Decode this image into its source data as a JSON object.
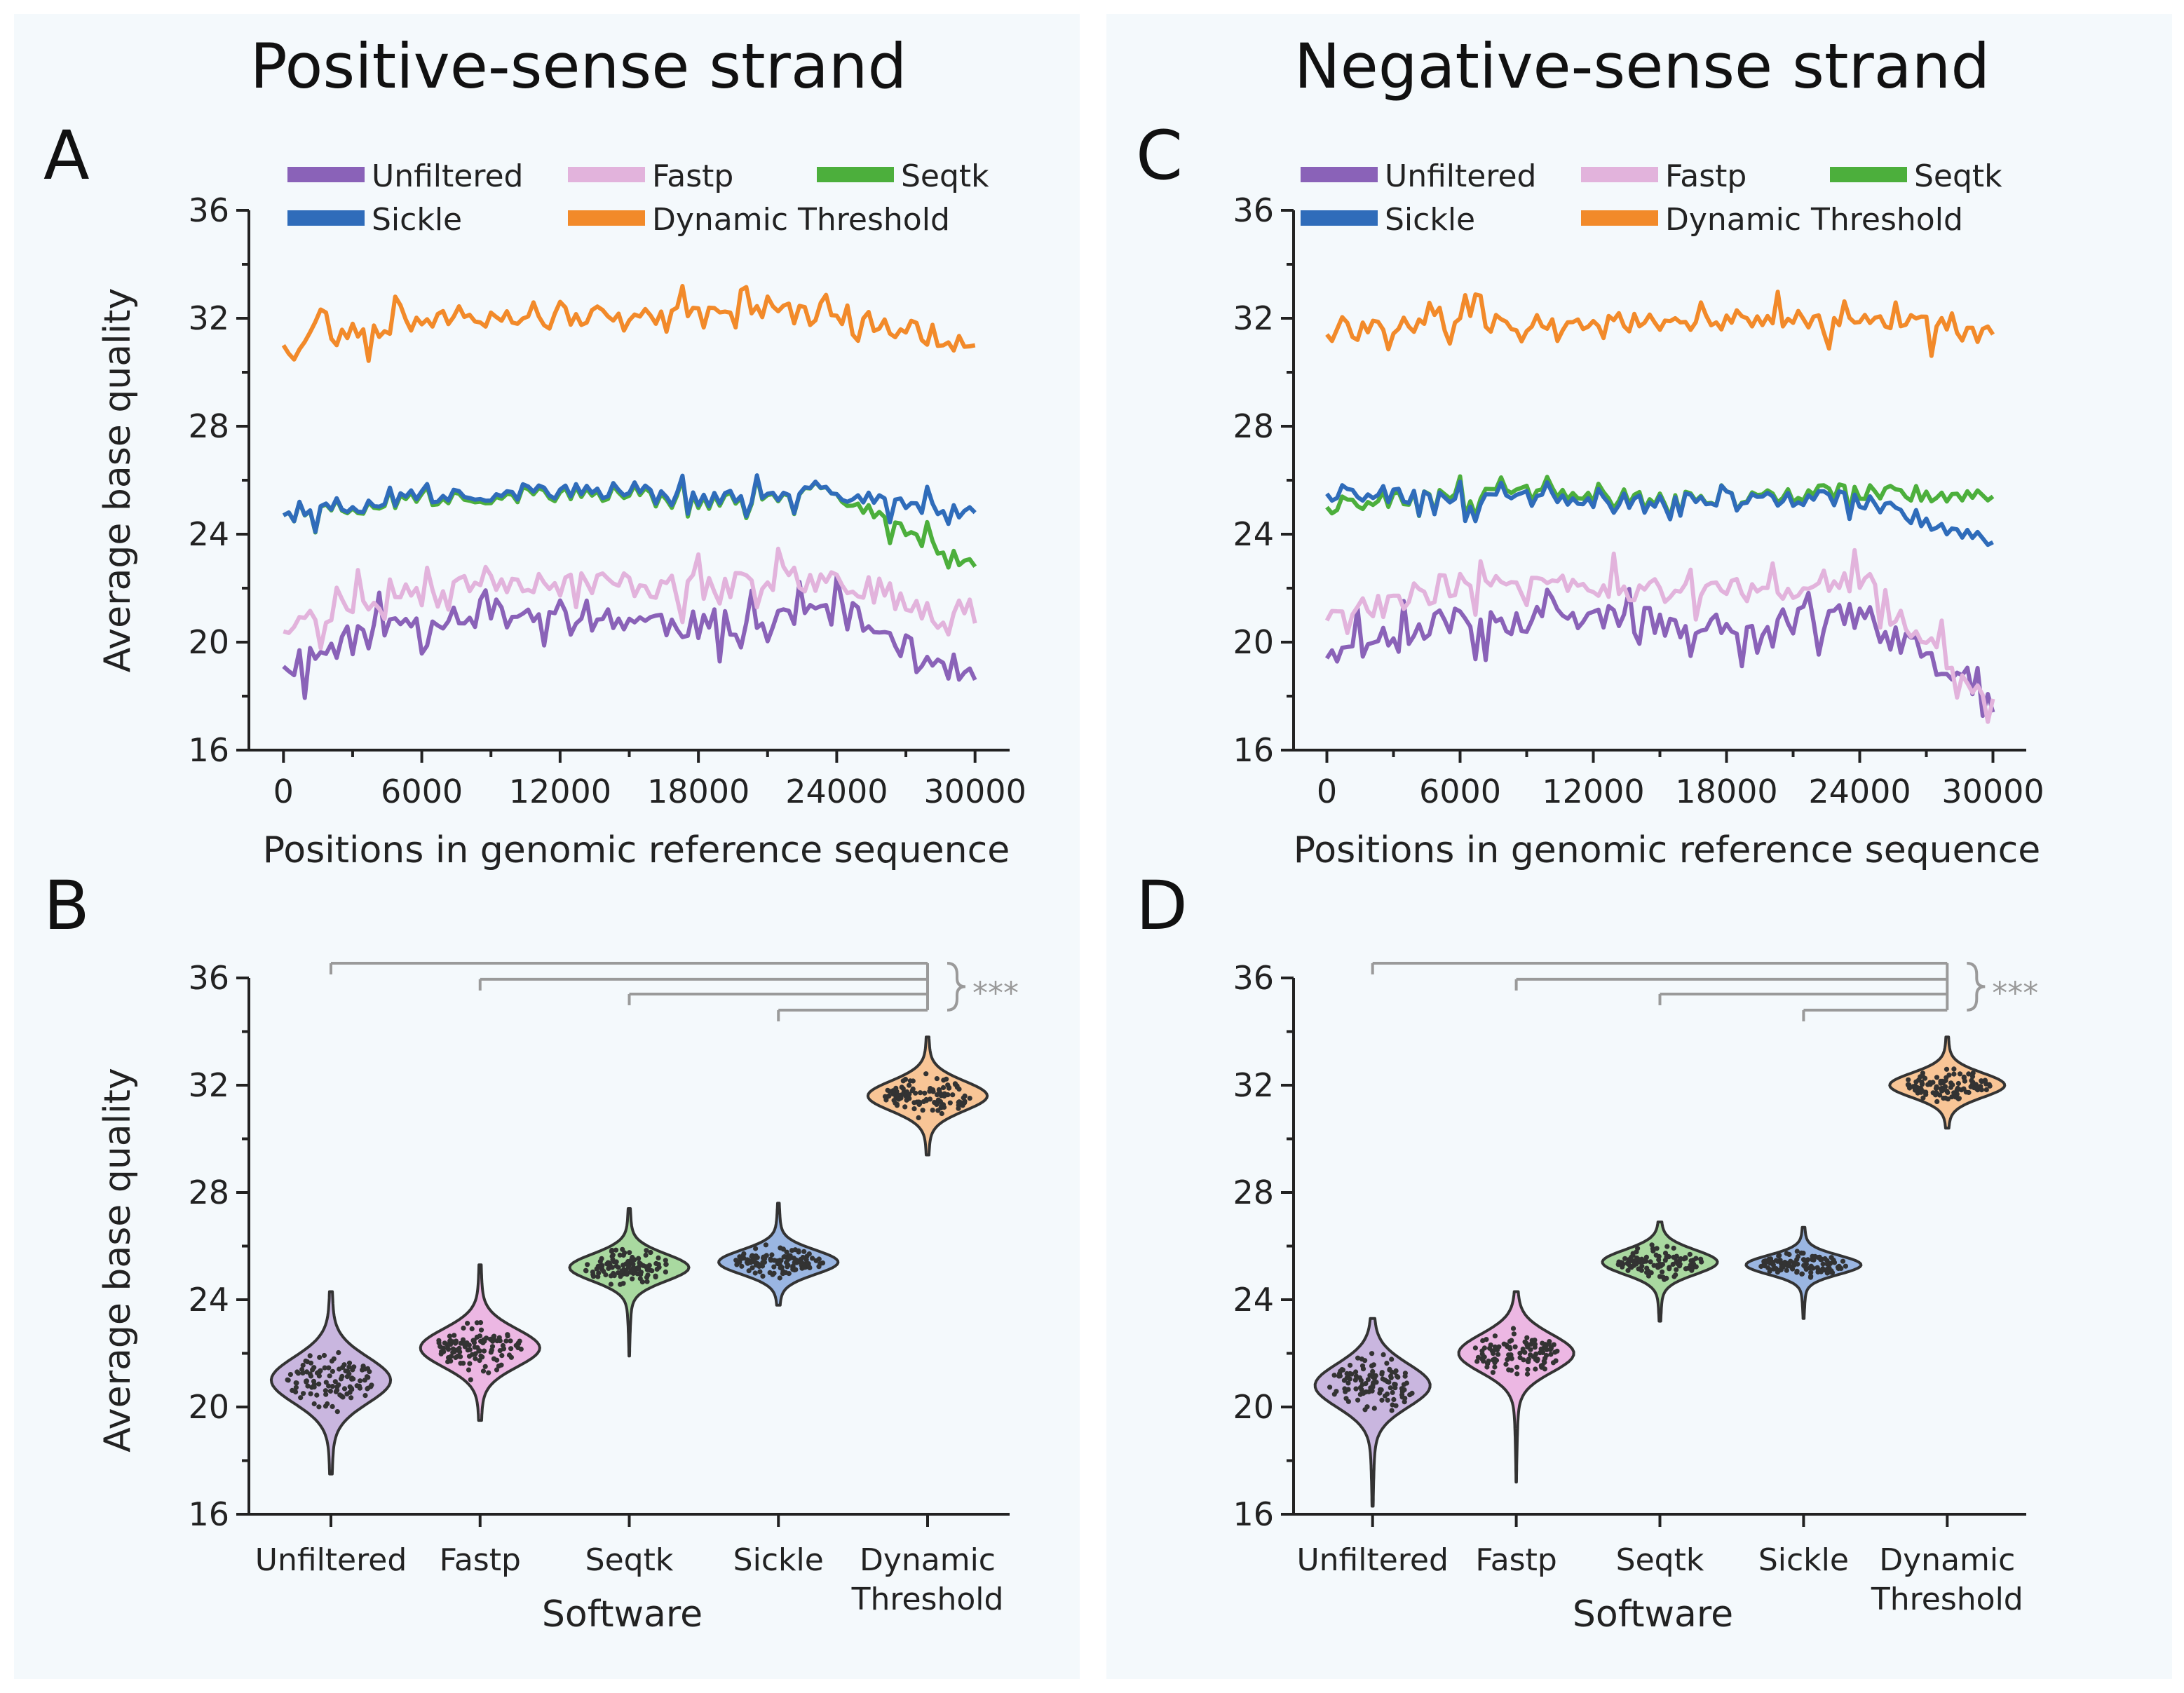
{
  "colors": {
    "Unfiltered": "#8a62b8",
    "Fastp": "#e2b3dc",
    "Seqtk": "#4caf3c",
    "Sickle": "#2f6cba",
    "Dynamic Threshold": "#f28a2a",
    "background": "#f4f9fc",
    "bracket": "#9a9a9a"
  },
  "violin_fill": {
    "Unfiltered": "#c9b6df",
    "Fastp": "#ecb7e3",
    "Seqtk": "#a9d9a0",
    "Sickle": "#9ab6e2",
    "Dynamic Threshold": "#f8c596"
  },
  "panels": {
    "positive_title": "Positive-sense strand",
    "negative_title": "Negative-sense strand"
  },
  "legend": [
    "Unfiltered",
    "Fastp",
    "Seqtk",
    "Sickle",
    "Dynamic Threshold"
  ],
  "significance": "***",
  "chart_data": [
    {
      "panel": "A",
      "type": "line",
      "strand": "Positive-sense strand",
      "xlabel": "Positions in genomic reference sequence",
      "ylabel": "Average base quality",
      "xlim": [
        -1500,
        31500
      ],
      "ylim": [
        16,
        36
      ],
      "xticks": [
        0,
        6000,
        12000,
        18000,
        24000,
        30000
      ],
      "yticks": [
        16,
        20,
        24,
        28,
        32,
        36
      ],
      "x": [
        0,
        6000,
        12000,
        18000,
        24000,
        30000
      ],
      "series": [
        {
          "name": "Unfiltered",
          "values": [
            19.1,
            21.0,
            21.1,
            20.6,
            21.2,
            18.6
          ],
          "seed": 11,
          "amp": 0.85
        },
        {
          "name": "Fastp",
          "values": [
            20.4,
            22.3,
            22.3,
            22.0,
            22.4,
            20.7
          ],
          "seed": 23,
          "amp": 0.75
        },
        {
          "name": "Seqtk",
          "values": [
            24.7,
            25.3,
            25.5,
            25.2,
            25.5,
            22.8
          ],
          "seed": 37,
          "amp": 0.45
        },
        {
          "name": "Sickle",
          "values": [
            24.7,
            25.4,
            25.6,
            25.3,
            25.5,
            24.8
          ],
          "seed": 37,
          "amp": 0.45
        },
        {
          "name": "Dynamic Threshold",
          "values": [
            31.0,
            32.0,
            32.1,
            32.0,
            32.2,
            31.0
          ],
          "seed": 53,
          "amp": 0.65
        }
      ]
    },
    {
      "panel": "C",
      "type": "line",
      "strand": "Negative-sense strand",
      "xlabel": "Positions in genomic reference sequence",
      "ylabel": "",
      "xlim": [
        -1500,
        31500
      ],
      "ylim": [
        16,
        36
      ],
      "xticks": [
        0,
        6000,
        12000,
        18000,
        24000,
        30000
      ],
      "yticks": [
        16,
        20,
        24,
        28,
        32,
        36
      ],
      "x": [
        0,
        6000,
        12000,
        18000,
        24000,
        30000
      ],
      "series": [
        {
          "name": "Unfiltered",
          "values": [
            19.4,
            20.8,
            20.9,
            20.5,
            21.1,
            17.4
          ],
          "seed": 71,
          "amp": 0.85
        },
        {
          "name": "Fastp",
          "values": [
            20.8,
            22.2,
            22.1,
            21.8,
            22.3,
            17.9
          ],
          "seed": 83,
          "amp": 0.75
        },
        {
          "name": "Seqtk",
          "values": [
            25.0,
            25.5,
            25.4,
            25.3,
            25.6,
            25.4
          ],
          "seed": 97,
          "amp": 0.45
        },
        {
          "name": "Sickle",
          "values": [
            25.5,
            25.3,
            25.2,
            25.3,
            25.3,
            23.7
          ],
          "seed": 97,
          "amp": 0.45
        },
        {
          "name": "Dynamic Threshold",
          "values": [
            31.4,
            31.9,
            31.8,
            31.9,
            32.0,
            31.4
          ],
          "seed": 109,
          "amp": 0.6
        }
      ]
    },
    {
      "panel": "B",
      "type": "violin",
      "strand": "Positive-sense strand",
      "xlabel": "Software",
      "ylabel": "Average base quality",
      "ylim": [
        16,
        36
      ],
      "yticks": [
        16,
        20,
        24,
        28,
        32,
        36
      ],
      "categories": [
        "Unfiltered",
        "Fastp",
        "Seqtk",
        "Sickle",
        "Dynamic Threshold"
      ],
      "category_lines": [
        [
          "Unfiltered"
        ],
        [
          "Fastp"
        ],
        [
          "Seqtk"
        ],
        [
          "Sickle"
        ],
        [
          "Dynamic",
          "Threshold"
        ]
      ],
      "series": [
        {
          "name": "Unfiltered",
          "median": 21.0,
          "spread": 0.85,
          "min": 17.5,
          "max": 24.3
        },
        {
          "name": "Fastp",
          "median": 22.2,
          "spread": 0.7,
          "min": 19.5,
          "max": 25.3
        },
        {
          "name": "Seqtk",
          "median": 25.2,
          "spread": 0.5,
          "min": 21.9,
          "max": 27.4
        },
        {
          "name": "Sickle",
          "median": 25.4,
          "spread": 0.45,
          "min": 23.8,
          "max": 27.6
        },
        {
          "name": "Dynamic Threshold",
          "median": 31.6,
          "spread": 0.55,
          "min": 29.4,
          "max": 33.8
        }
      ],
      "comparisons": [
        {
          "from": "Unfiltered",
          "to": "Dynamic Threshold",
          "y": 36.55
        },
        {
          "from": "Fastp",
          "to": "Dynamic Threshold",
          "y": 35.95
        },
        {
          "from": "Seqtk",
          "to": "Dynamic Threshold",
          "y": 35.4
        },
        {
          "from": "Sickle",
          "to": "Dynamic Threshold",
          "y": 34.8
        }
      ],
      "significance": "***"
    },
    {
      "panel": "D",
      "type": "violin",
      "strand": "Negative-sense strand",
      "xlabel": "Software",
      "ylabel": "",
      "ylim": [
        16,
        36
      ],
      "yticks": [
        16,
        20,
        24,
        28,
        32,
        36
      ],
      "categories": [
        "Unfiltered",
        "Fastp",
        "Seqtk",
        "Sickle",
        "Dynamic Threshold"
      ],
      "category_lines": [
        [
          "Unfiltered"
        ],
        [
          "Fastp"
        ],
        [
          "Seqtk"
        ],
        [
          "Sickle"
        ],
        [
          "Dynamic",
          "Threshold"
        ]
      ],
      "series": [
        {
          "name": "Unfiltered",
          "median": 20.8,
          "spread": 0.8,
          "min": 16.3,
          "max": 23.3
        },
        {
          "name": "Fastp",
          "median": 22.0,
          "spread": 0.7,
          "min": 17.2,
          "max": 24.3
        },
        {
          "name": "Seqtk",
          "median": 25.4,
          "spread": 0.45,
          "min": 23.2,
          "max": 26.9
        },
        {
          "name": "Sickle",
          "median": 25.3,
          "spread": 0.35,
          "min": 23.3,
          "max": 26.7
        },
        {
          "name": "Dynamic Threshold",
          "median": 32.0,
          "spread": 0.45,
          "min": 30.4,
          "max": 33.8
        }
      ],
      "comparisons": [
        {
          "from": "Unfiltered",
          "to": "Dynamic Threshold",
          "y": 36.55
        },
        {
          "from": "Fastp",
          "to": "Dynamic Threshold",
          "y": 35.95
        },
        {
          "from": "Seqtk",
          "to": "Dynamic Threshold",
          "y": 35.4
        },
        {
          "from": "Sickle",
          "to": "Dynamic Threshold",
          "y": 34.8
        }
      ],
      "significance": "***"
    }
  ]
}
